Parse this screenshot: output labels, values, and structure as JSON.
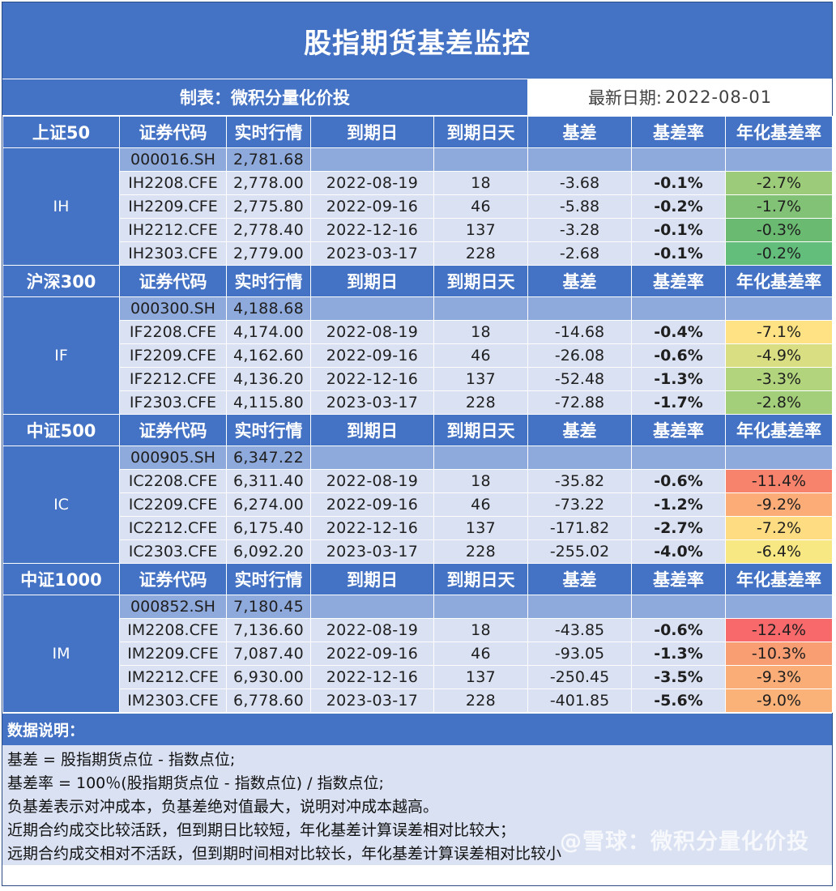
{
  "title": "股指期货基差监控",
  "maker": "制表：微积分量化价投",
  "date_label": "最新日期:",
  "date_value": "2022-08-01",
  "headers": {
    "code": "证券代码",
    "price": "实时行情",
    "expiry": "到期日",
    "days": "到期日天",
    "basis": "基差",
    "rate": "基差率",
    "annual": "年化基差率"
  },
  "groups": [
    {
      "name": "上证50",
      "label": "IH",
      "index": {
        "code": "000016.SH",
        "price": "2,781.68"
      },
      "rows": [
        {
          "code": "IH2208.CFE",
          "price": "2,778.00",
          "expiry": "2022-08-19",
          "days": "18",
          "basis": "-3.68",
          "rate": "-0.1%",
          "annual": "-2.7%",
          "color": "#9ccb79"
        },
        {
          "code": "IH2209.CFE",
          "price": "2,775.80",
          "expiry": "2022-09-16",
          "days": "46",
          "basis": "-5.88",
          "rate": "-0.2%",
          "annual": "-1.7%",
          "color": "#82c276"
        },
        {
          "code": "IH2212.CFE",
          "price": "2,778.40",
          "expiry": "2022-12-16",
          "days": "137",
          "basis": "-3.28",
          "rate": "-0.1%",
          "annual": "-0.3%",
          "color": "#6bba71"
        },
        {
          "code": "IH2303.CFE",
          "price": "2,779.00",
          "expiry": "2023-03-17",
          "days": "228",
          "basis": "-2.68",
          "rate": "-0.1%",
          "annual": "-0.2%",
          "color": "#63be7b"
        }
      ]
    },
    {
      "name": "沪深300",
      "label": "IF",
      "index": {
        "code": "000300.SH",
        "price": "4,188.68"
      },
      "rows": [
        {
          "code": "IF2208.CFE",
          "price": "4,174.00",
          "expiry": "2022-08-19",
          "days": "18",
          "basis": "-14.68",
          "rate": "-0.4%",
          "annual": "-7.1%",
          "color": "#fee283"
        },
        {
          "code": "IF2209.CFE",
          "price": "4,162.60",
          "expiry": "2022-09-16",
          "days": "46",
          "basis": "-26.08",
          "rate": "-0.6%",
          "annual": "-4.9%",
          "color": "#d8de81"
        },
        {
          "code": "IF2212.CFE",
          "price": "4,136.20",
          "expiry": "2022-12-16",
          "days": "137",
          "basis": "-52.48",
          "rate": "-1.3%",
          "annual": "-3.3%",
          "color": "#b2d47c"
        },
        {
          "code": "IF2303.CFE",
          "price": "4,115.80",
          "expiry": "2023-03-17",
          "days": "228",
          "basis": "-72.88",
          "rate": "-1.7%",
          "annual": "-2.8%",
          "color": "#a4cf7a"
        }
      ]
    },
    {
      "name": "中证500",
      "label": "IC",
      "index": {
        "code": "000905.SH",
        "price": "6,347.22"
      },
      "rows": [
        {
          "code": "IC2208.CFE",
          "price": "6,311.40",
          "expiry": "2022-08-19",
          "days": "18",
          "basis": "-35.82",
          "rate": "-0.6%",
          "annual": "-11.4%",
          "color": "#f8836c"
        },
        {
          "code": "IC2209.CFE",
          "price": "6,274.00",
          "expiry": "2022-09-16",
          "days": "46",
          "basis": "-73.22",
          "rate": "-1.2%",
          "annual": "-9.2%",
          "color": "#fbac77"
        },
        {
          "code": "IC2212.CFE",
          "price": "6,175.40",
          "expiry": "2022-12-16",
          "days": "137",
          "basis": "-171.82",
          "rate": "-2.7%",
          "annual": "-7.2%",
          "color": "#fedc81"
        },
        {
          "code": "IC2303.CFE",
          "price": "6,092.20",
          "expiry": "2023-03-17",
          "days": "228",
          "basis": "-255.02",
          "rate": "-4.0%",
          "annual": "-6.4%",
          "color": "#f7e883"
        }
      ]
    },
    {
      "name": "中证1000",
      "label": "IM",
      "index": {
        "code": "000852.SH",
        "price": "7,180.45"
      },
      "rows": [
        {
          "code": "IM2208.CFE",
          "price": "7,136.60",
          "expiry": "2022-08-19",
          "days": "18",
          "basis": "-43.85",
          "rate": "-0.6%",
          "annual": "-12.4%",
          "color": "#f8696b"
        },
        {
          "code": "IM2209.CFE",
          "price": "7,087.40",
          "expiry": "2022-09-16",
          "days": "46",
          "basis": "-93.05",
          "rate": "-1.3%",
          "annual": "-10.3%",
          "color": "#f99d72"
        },
        {
          "code": "IM2212.CFE",
          "price": "6,930.00",
          "expiry": "2022-12-16",
          "days": "137",
          "basis": "-250.45",
          "rate": "-3.5%",
          "annual": "-9.3%",
          "color": "#fbad77"
        },
        {
          "code": "IM2303.CFE",
          "price": "6,778.60",
          "expiry": "2023-03-17",
          "days": "228",
          "basis": "-401.85",
          "rate": "-5.6%",
          "annual": "-9.0%",
          "color": "#fbb279"
        }
      ]
    }
  ],
  "notes_title": "数据说明：",
  "notes": [
    "基差 = 股指期货点位 - 指数点位;",
    "基差率 = 100％(股指期货点位 - 指数点位) / 指数点位;",
    "负基差表示对冲成本，负基差绝对值最大，说明对冲成本越高。",
    "近期合约成交比较活跃，但到期日比较短，年化基差计算误差相对比较大；",
    "远期合约成交相对不活跃，但到期时间相对比较长，年化基差计算误差相对比较小"
  ],
  "watermark": "@雪球：微积分量化价投"
}
